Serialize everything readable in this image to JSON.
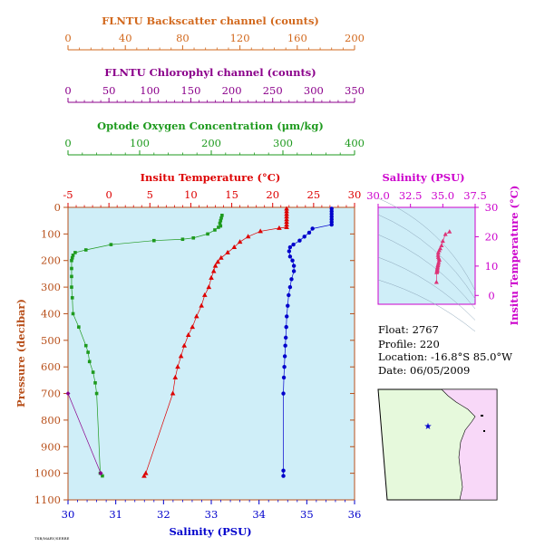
{
  "colors": {
    "backscatter": "#d2691e",
    "chlorophyll": "#8b008b",
    "oxygen": "#1e9a1e",
    "temperature": "#dd0000",
    "salinity": "#0000cc",
    "axis_main": "#b8501b",
    "ts_axis": "#cc00cc",
    "plot_bg": "#cfeef8",
    "map_land": "#e6f9dc",
    "map_land_east": "#f8d8f8"
  },
  "top_axes": {
    "backscatter": {
      "title": "FLNTU Backscatter channel (counts)",
      "ticks": [
        "0",
        "40",
        "80",
        "120",
        "160",
        "200"
      ]
    },
    "chlorophyll": {
      "title": "FLNTU Chlorophyl channel (counts)",
      "ticks": [
        "0",
        "50",
        "100",
        "150",
        "200",
        "250",
        "300",
        "350"
      ]
    },
    "oxygen": {
      "title": "Optode Oxygen Concentration (μm/kg)",
      "ticks": [
        "0",
        "100",
        "200",
        "300",
        "400"
      ]
    }
  },
  "info": {
    "float": "Float:  2767",
    "profile": "Profile:  220",
    "location": "Location:  -16.8°S  85.0°W",
    "date": "Date:  06/05/2009"
  },
  "footer_tag": "TSB/MARV/SERRE",
  "chart_data": [
    {
      "type": "line",
      "title": "",
      "y_label": "Pressure (decibar)",
      "ylim": [
        1100,
        0
      ],
      "y_ticks": [
        "0",
        "100",
        "200",
        "300",
        "400",
        "500",
        "600",
        "700",
        "800",
        "900",
        "1000",
        "1100"
      ],
      "x_axes": {
        "temperature": {
          "label": "Insitu Temperature (°C)",
          "range": [
            -5,
            30
          ],
          "ticks": [
            "-5",
            "0",
            "5",
            "10",
            "15",
            "20",
            "25",
            "30"
          ]
        },
        "salinity": {
          "label": "Salinity (PSU)",
          "range": [
            30,
            36
          ],
          "ticks": [
            "30",
            "31",
            "32",
            "33",
            "34",
            "35",
            "36"
          ]
        },
        "oxygen": {
          "range": [
            0,
            400
          ]
        },
        "chlorophyll": {
          "range": [
            0,
            350
          ]
        }
      },
      "series": [
        {
          "name": "Insitu Temperature (°C)",
          "x_axis": "temperature",
          "color": "#dd0000",
          "marker": "triangle",
          "points": [
            [
              21.7,
              5
            ],
            [
              21.7,
              15
            ],
            [
              21.7,
              25
            ],
            [
              21.7,
              35
            ],
            [
              21.7,
              45
            ],
            [
              21.7,
              55
            ],
            [
              21.7,
              65
            ],
            [
              21.7,
              75
            ],
            [
              20.8,
              78
            ],
            [
              18.5,
              90
            ],
            [
              17.0,
              110
            ],
            [
              16.0,
              130
            ],
            [
              15.3,
              150
            ],
            [
              14.5,
              170
            ],
            [
              13.7,
              190
            ],
            [
              13.3,
              205
            ],
            [
              13.0,
              220
            ],
            [
              12.8,
              240
            ],
            [
              12.5,
              265
            ],
            [
              12.2,
              300
            ],
            [
              11.7,
              330
            ],
            [
              11.3,
              370
            ],
            [
              10.7,
              410
            ],
            [
              10.2,
              450
            ],
            [
              9.7,
              480
            ],
            [
              9.2,
              520
            ],
            [
              8.8,
              560
            ],
            [
              8.4,
              600
            ],
            [
              8.1,
              640
            ],
            [
              7.8,
              700
            ],
            [
              4.5,
              1000
            ],
            [
              4.3,
              1010
            ]
          ]
        },
        {
          "name": "Salinity (PSU)",
          "x_axis": "salinity",
          "color": "#0000cc",
          "marker": "circle",
          "points": [
            [
              35.52,
              5
            ],
            [
              35.52,
              15
            ],
            [
              35.52,
              25
            ],
            [
              35.52,
              35
            ],
            [
              35.52,
              45
            ],
            [
              35.52,
              55
            ],
            [
              35.52,
              65
            ],
            [
              35.12,
              80
            ],
            [
              35.05,
              95
            ],
            [
              34.95,
              110
            ],
            [
              34.85,
              125
            ],
            [
              34.72,
              140
            ],
            [
              34.65,
              150
            ],
            [
              34.63,
              165
            ],
            [
              34.65,
              185
            ],
            [
              34.7,
              200
            ],
            [
              34.73,
              220
            ],
            [
              34.73,
              240
            ],
            [
              34.68,
              270
            ],
            [
              34.65,
              300
            ],
            [
              34.62,
              330
            ],
            [
              34.6,
              370
            ],
            [
              34.58,
              410
            ],
            [
              34.57,
              450
            ],
            [
              34.56,
              490
            ],
            [
              34.55,
              520
            ],
            [
              34.54,
              560
            ],
            [
              34.53,
              600
            ],
            [
              34.52,
              640
            ],
            [
              34.51,
              700
            ],
            [
              34.51,
              990
            ],
            [
              34.51,
              1010
            ]
          ]
        },
        {
          "name": "Optode Oxygen Concentration",
          "x_axis": "oxygen",
          "color": "#1e9a1e",
          "marker": "square",
          "points": [
            [
              215,
              30
            ],
            [
              214,
              40
            ],
            [
              213,
              50
            ],
            [
              212,
              60
            ],
            [
              213,
              70
            ],
            [
              210,
              75
            ],
            [
              205,
              85
            ],
            [
              195,
              100
            ],
            [
              175,
              115
            ],
            [
              160,
              120
            ],
            [
              120,
              125
            ],
            [
              60,
              140
            ],
            [
              25,
              160
            ],
            [
              10,
              170
            ],
            [
              7,
              180
            ],
            [
              6,
              190
            ],
            [
              5,
              200
            ],
            [
              5,
              230
            ],
            [
              5,
              260
            ],
            [
              5,
              300
            ],
            [
              6,
              340
            ],
            [
              7,
              400
            ],
            [
              15,
              450
            ],
            [
              25,
              520
            ],
            [
              28,
              545
            ],
            [
              30,
              580
            ],
            [
              35,
              620
            ],
            [
              38,
              660
            ],
            [
              40,
              700
            ],
            [
              45,
              1000
            ],
            [
              48,
              1010
            ]
          ]
        },
        {
          "name": "FLNTU Chlorophyl channel",
          "x_axis": "chlorophyll",
          "color": "#8b008b",
          "marker": "diamond",
          "points": [
            [
              0,
              700
            ],
            [
              40,
              1000
            ]
          ]
        }
      ]
    },
    {
      "type": "scatter",
      "title": "Salinity (PSU)",
      "xlabel": "Salinity (PSU)",
      "ylabel": "Insitu Temperature (°C)",
      "xlim": [
        30,
        37.5
      ],
      "ylim": [
        -3,
        30
      ],
      "x_ticks": [
        "30.0",
        "32.5",
        "35.0",
        "37.5"
      ],
      "y_ticks": [
        "0",
        "10",
        "20",
        "30"
      ],
      "series": [
        {
          "name": "T-S",
          "color": "#dd3377",
          "points": [
            [
              35.52,
              21.7
            ],
            [
              35.2,
              20.8
            ],
            [
              35.0,
              18.5
            ],
            [
              34.9,
              17.0
            ],
            [
              34.8,
              16.0
            ],
            [
              34.72,
              15.3
            ],
            [
              34.65,
              14.5
            ],
            [
              34.63,
              13.7
            ],
            [
              34.65,
              13.0
            ],
            [
              34.7,
              12.5
            ],
            [
              34.73,
              12.0
            ],
            [
              34.68,
              11.3
            ],
            [
              34.65,
              10.7
            ],
            [
              34.62,
              10.2
            ],
            [
              34.6,
              9.7
            ],
            [
              34.58,
              9.2
            ],
            [
              34.57,
              8.8
            ],
            [
              34.56,
              8.4
            ],
            [
              34.55,
              8.1
            ],
            [
              34.53,
              7.8
            ],
            [
              34.51,
              4.5
            ]
          ]
        }
      ]
    }
  ],
  "map": {
    "float_marker": "★"
  }
}
